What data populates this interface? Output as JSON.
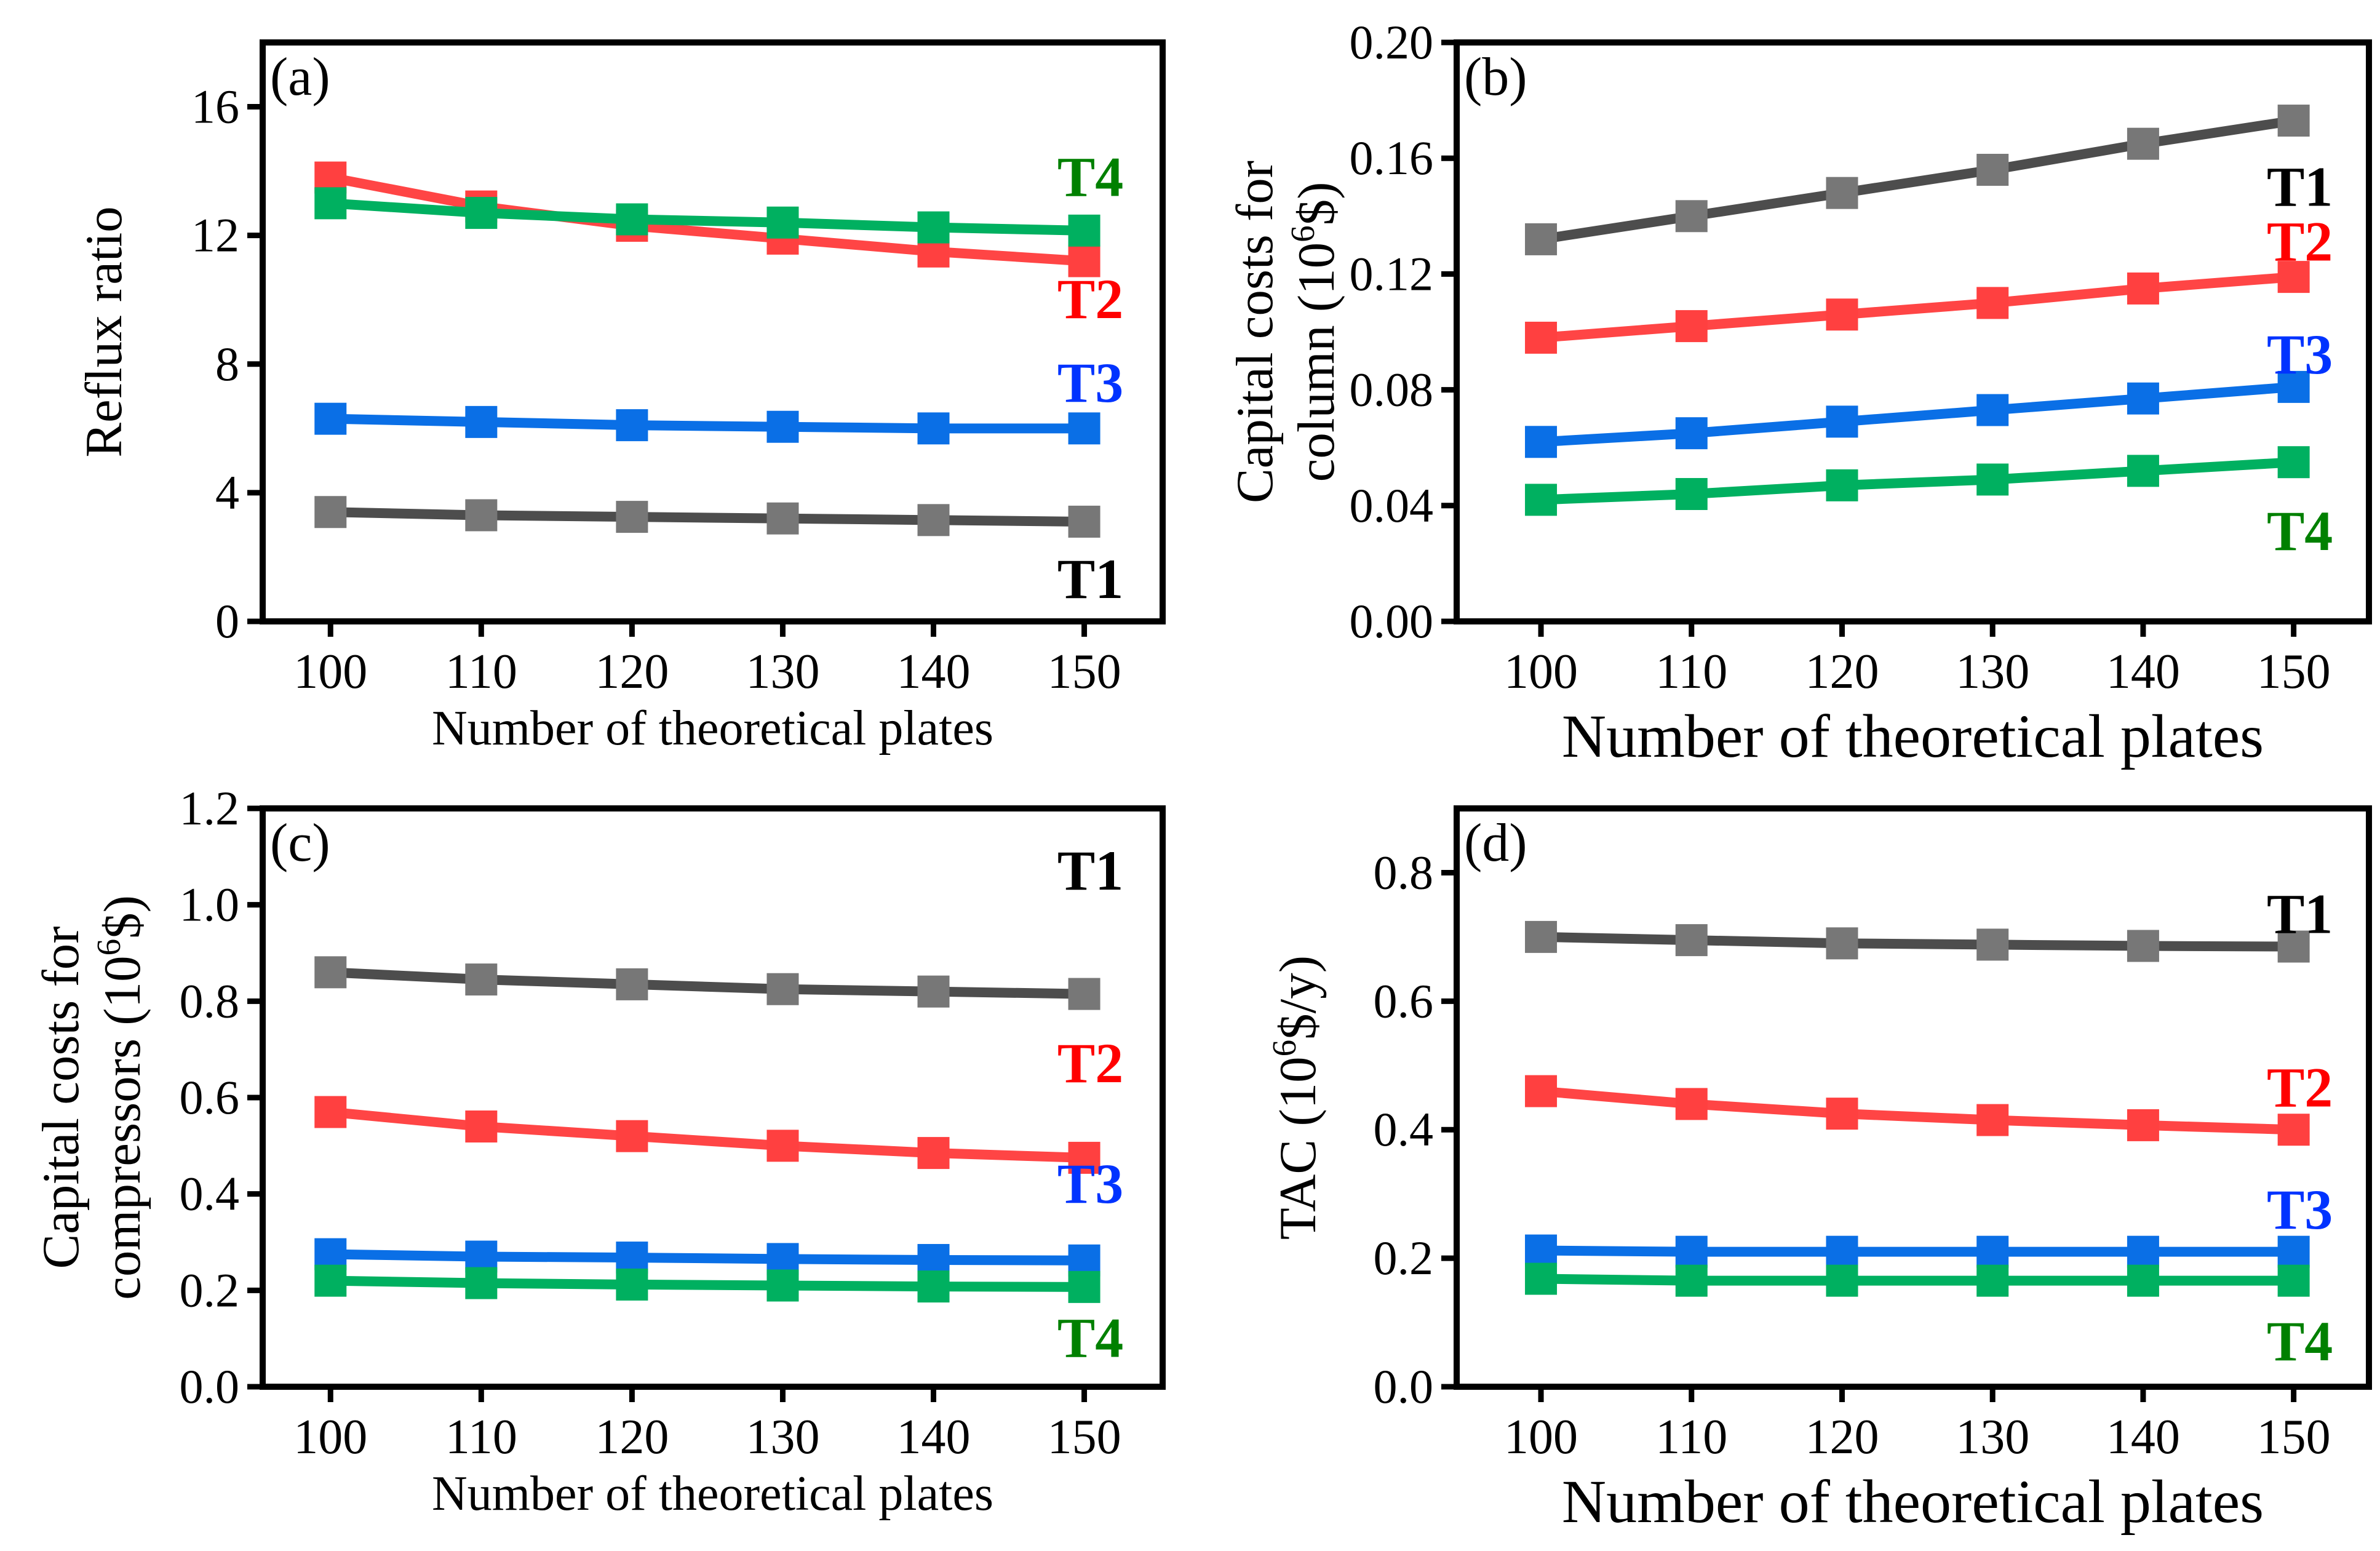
{
  "chart_data": [
    {
      "type": "line",
      "panel": "(a)",
      "x": [
        100,
        110,
        120,
        130,
        140,
        150
      ],
      "xlabel": "Number of theoretical plates",
      "ylabel": [
        {
          "text": "Reflux ratio"
        }
      ],
      "ylim": [
        0,
        18
      ],
      "yticks": [
        0,
        4,
        8,
        12,
        16
      ],
      "ytick_labels": [
        "0",
        "4",
        "8",
        "12",
        "16"
      ],
      "xticks": [
        100,
        110,
        120,
        130,
        140,
        150
      ],
      "xtick_labels": [
        "100",
        "110",
        "120",
        "130",
        "140",
        "150"
      ],
      "series": [
        {
          "name": "T1",
          "values": [
            3.4,
            3.3,
            3.25,
            3.2,
            3.15,
            3.1
          ]
        },
        {
          "name": "T2",
          "values": [
            13.8,
            12.9,
            12.3,
            11.9,
            11.5,
            11.2
          ]
        },
        {
          "name": "T3",
          "values": [
            6.3,
            6.2,
            6.1,
            6.05,
            6.0,
            6.0
          ]
        },
        {
          "name": "T4",
          "values": [
            13.0,
            12.7,
            12.5,
            12.4,
            12.25,
            12.15
          ]
        }
      ]
    },
    {
      "type": "line",
      "panel": "(b)",
      "x": [
        100,
        110,
        120,
        130,
        140,
        150
      ],
      "xlabel": "Number of theoretical plates",
      "ylabel": [
        {
          "text": "Capital costs for"
        },
        {
          "pre": "column (10",
          "sup": "6",
          "post": "$)"
        }
      ],
      "ylim": [
        0,
        0.2
      ],
      "yticks": [
        0,
        0.04,
        0.08,
        0.12,
        0.16,
        0.2
      ],
      "ytick_labels": [
        "0.00",
        "0.04",
        "0.08",
        "0.12",
        "0.16",
        "0.20"
      ],
      "xticks": [
        100,
        110,
        120,
        130,
        140,
        150
      ],
      "xtick_labels": [
        "100",
        "110",
        "120",
        "130",
        "140",
        "150"
      ],
      "series": [
        {
          "name": "T1",
          "values": [
            0.132,
            0.14,
            0.148,
            0.156,
            0.165,
            0.173
          ]
        },
        {
          "name": "T2",
          "values": [
            0.098,
            0.102,
            0.106,
            0.11,
            0.115,
            0.119
          ]
        },
        {
          "name": "T3",
          "values": [
            0.062,
            0.065,
            0.069,
            0.073,
            0.077,
            0.081
          ]
        },
        {
          "name": "T4",
          "values": [
            0.042,
            0.044,
            0.047,
            0.049,
            0.052,
            0.055
          ]
        }
      ]
    },
    {
      "type": "line",
      "panel": "(c)",
      "x": [
        100,
        110,
        120,
        130,
        140,
        150
      ],
      "xlabel": "Number of theoretical plates",
      "ylabel": [
        {
          "text": "Capital costs for"
        },
        {
          "pre": "compressors (10",
          "sup": "6",
          "post": "$)"
        }
      ],
      "ylim": [
        0,
        1.2
      ],
      "yticks": [
        0,
        0.2,
        0.4,
        0.6,
        0.8,
        1.0,
        1.2
      ],
      "ytick_labels": [
        "0.0",
        "0.2",
        "0.4",
        "0.6",
        "0.8",
        "1.0",
        "1.2"
      ],
      "xticks": [
        100,
        110,
        120,
        130,
        140,
        150
      ],
      "xtick_labels": [
        "100",
        "110",
        "120",
        "130",
        "140",
        "150"
      ],
      "series": [
        {
          "name": "T1",
          "values": [
            0.86,
            0.845,
            0.835,
            0.825,
            0.82,
            0.815
          ]
        },
        {
          "name": "T2",
          "values": [
            0.57,
            0.54,
            0.52,
            0.5,
            0.485,
            0.475
          ]
        },
        {
          "name": "T3",
          "values": [
            0.275,
            0.27,
            0.268,
            0.265,
            0.263,
            0.262
          ]
        },
        {
          "name": "T4",
          "values": [
            0.22,
            0.215,
            0.212,
            0.21,
            0.208,
            0.207
          ]
        }
      ]
    },
    {
      "type": "line",
      "panel": "(d)",
      "x": [
        100,
        110,
        120,
        130,
        140,
        150
      ],
      "xlabel": "Number of theoretical plates",
      "ylabel": [
        {
          "pre": "TAC (10",
          "sup": "6",
          "post": "$/y)"
        }
      ],
      "ylim": [
        0,
        0.9
      ],
      "yticks": [
        0,
        0.2,
        0.4,
        0.6,
        0.8
      ],
      "ytick_labels": [
        "0.0",
        "0.2",
        "0.4",
        "0.6",
        "0.8"
      ],
      "xticks": [
        100,
        110,
        120,
        130,
        140,
        150
      ],
      "xtick_labels": [
        "100",
        "110",
        "120",
        "130",
        "140",
        "150"
      ],
      "series": [
        {
          "name": "T1",
          "values": [
            0.7,
            0.695,
            0.69,
            0.688,
            0.686,
            0.685
          ]
        },
        {
          "name": "T2",
          "values": [
            0.46,
            0.44,
            0.425,
            0.415,
            0.407,
            0.4
          ]
        },
        {
          "name": "T3",
          "values": [
            0.212,
            0.21,
            0.21,
            0.21,
            0.21,
            0.21
          ]
        },
        {
          "name": "T4",
          "values": [
            0.168,
            0.165,
            0.165,
            0.165,
            0.165,
            0.165
          ]
        }
      ]
    }
  ],
  "colors": {
    "T1": {
      "line": "#4d4d4d",
      "marker": "#777777",
      "label": "#000000"
    },
    "T2": {
      "line": "#ff4545",
      "marker": "#ff4040",
      "label": "#ff0000"
    },
    "T3": {
      "line": "#0a6fe6",
      "marker": "#0a6fe6",
      "label": "#0033ff"
    },
    "T4": {
      "line": "#00b060",
      "marker": "#00b060",
      "label": "#008000"
    }
  }
}
